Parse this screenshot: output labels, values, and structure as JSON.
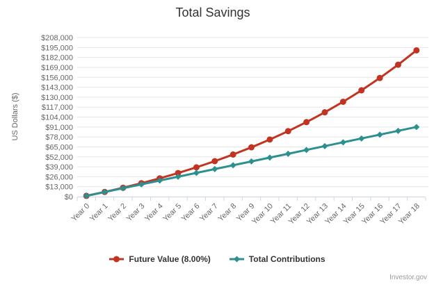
{
  "chart_data": {
    "type": "line",
    "title": "Total Savings",
    "xlabel": "",
    "ylabel": "US Dollars ($)",
    "categories": [
      "Year 0",
      "Year 1",
      "Year 2",
      "Year 3",
      "Year 4",
      "Year 5",
      "Year 6",
      "Year 7",
      "Year 8",
      "Year 9",
      "Year 10",
      "Year 11",
      "Year 12",
      "Year 13",
      "Year 14",
      "Year 15",
      "Year 16",
      "Year 17",
      "Year 18"
    ],
    "ylim": [
      0,
      208000
    ],
    "ytick_step": 13000,
    "ytick_labels": [
      "$0",
      "$13,000",
      "$26,000",
      "$39,000",
      "$52,000",
      "$65,000",
      "$78,000",
      "$91,000",
      "$104,000",
      "$117,000",
      "$130,000",
      "$143,000",
      "$156,000",
      "$169,000",
      "$182,000",
      "$195,000",
      "$208,000"
    ],
    "grid": true,
    "legend_position": "bottom",
    "series": [
      {
        "name": "Future Value (8.00%)",
        "color": "#c23321",
        "marker": "circle",
        "values": [
          1000,
          6080,
          11566,
          17492,
          23891,
          30802,
          38267,
          46328,
          55034,
          64437,
          74592,
          85559,
          97404,
          110196,
          124012,
          138933,
          155047,
          172451,
          191247
        ]
      },
      {
        "name": "Total Contributions",
        "color": "#2b908f",
        "marker": "diamond",
        "values": [
          1000,
          6000,
          11000,
          16000,
          21000,
          26000,
          31000,
          36000,
          41000,
          46000,
          51000,
          56000,
          61000,
          66000,
          71000,
          76000,
          81000,
          86000,
          91000
        ]
      }
    ],
    "colors": {
      "gridline": "#e6e6e6",
      "axis_line": "#ccd6eb",
      "tick_label": "#666666",
      "title": "#333333",
      "legend_text": "#333333",
      "credits_text": "#999999"
    }
  },
  "credits": {
    "text": "Investor.gov"
  }
}
